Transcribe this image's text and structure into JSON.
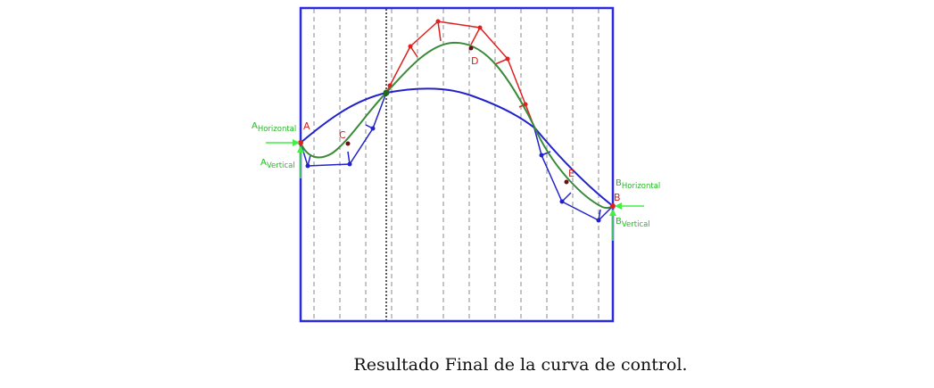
{
  "figure": {
    "caption": "Resultado Final de la curva de control.",
    "labels": {
      "A": "A",
      "B": "B",
      "C": "C",
      "D": "D",
      "E": "E",
      "a_main": "A",
      "a_h_sub": "Horizontal",
      "a_v_sub": "Vertical",
      "b_main": "B",
      "b_h_sub": "Horizontal",
      "b_v_sub": "Vertical"
    },
    "colors": {
      "frame": "#2b2bdd",
      "blue_curve": "#2222cc",
      "red_polygon": "#e02020",
      "green_curve": "#3a8a3a",
      "arrows": "#44ee44",
      "grid_dashes": "#777777"
    }
  }
}
